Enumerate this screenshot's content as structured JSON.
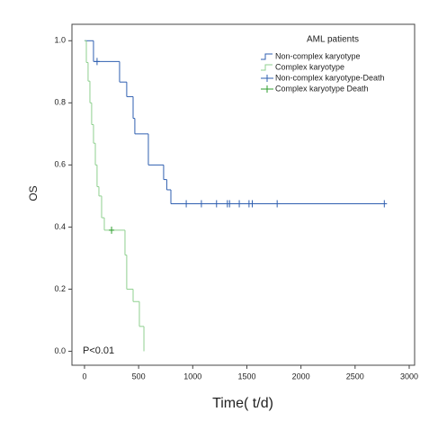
{
  "chart_data": {
    "type": "step",
    "x_label": "Time( t/d)",
    "y_label": "OS",
    "legend_title": "AML patients",
    "annotation": "P<0.01",
    "xlim": [
      -116,
      3050
    ],
    "ylim": [
      -0.045,
      1.053
    ],
    "xticks": [
      0,
      500,
      1000,
      1500,
      2000,
      2500,
      3000
    ],
    "yticks": [
      {
        "value": 0,
        "label": "0.0"
      },
      0.2,
      0.4,
      {
        "value": 0.6,
        "label": "0.6"
      },
      {
        "value": 0.8,
        "label": "0.8"
      },
      {
        "value": 1,
        "label": "1.0"
      }
    ],
    "series": [
      {
        "name": "Non-complex karyotype",
        "kind": "curve",
        "color": "#2f5fb0",
        "x": [
          0,
          83,
          324,
          390,
          449,
          465,
          590,
          731,
          760,
          798,
          2770
        ],
        "values": [
          1,
          0.933,
          0.867,
          0.82,
          0.75,
          0.7,
          0.6,
          0.553,
          0.52,
          0.475,
          0.475
        ]
      },
      {
        "name": "Complex karyotype",
        "kind": "curve",
        "color": "#8fd08f",
        "x": [
          0,
          17,
          33,
          50,
          66,
          83,
          100,
          116,
          133,
          158,
          183,
          374,
          390,
          449,
          507,
          549
        ],
        "values": [
          1,
          0.93,
          0.87,
          0.8,
          0.73,
          0.67,
          0.6,
          0.53,
          0.5,
          0.43,
          0.39,
          0.31,
          0.2,
          0.16,
          0.08,
          0
        ]
      },
      {
        "name": "Non-complex karyotype-Death",
        "kind": "censor",
        "color": "#2f5fb0",
        "x": [
          116,
          940,
          1080,
          1220,
          1320,
          1340,
          1430,
          1520,
          1550,
          1780,
          2770
        ],
        "values": [
          0.933,
          0.475,
          0.475,
          0.475,
          0.475,
          0.475,
          0.475,
          0.475,
          0.475,
          0.475,
          0.475
        ]
      },
      {
        "name": "Complex karyotype Death",
        "kind": "censor",
        "color": "#2e9e2e",
        "x": [
          250
        ],
        "values": [
          0.39
        ]
      }
    ]
  }
}
